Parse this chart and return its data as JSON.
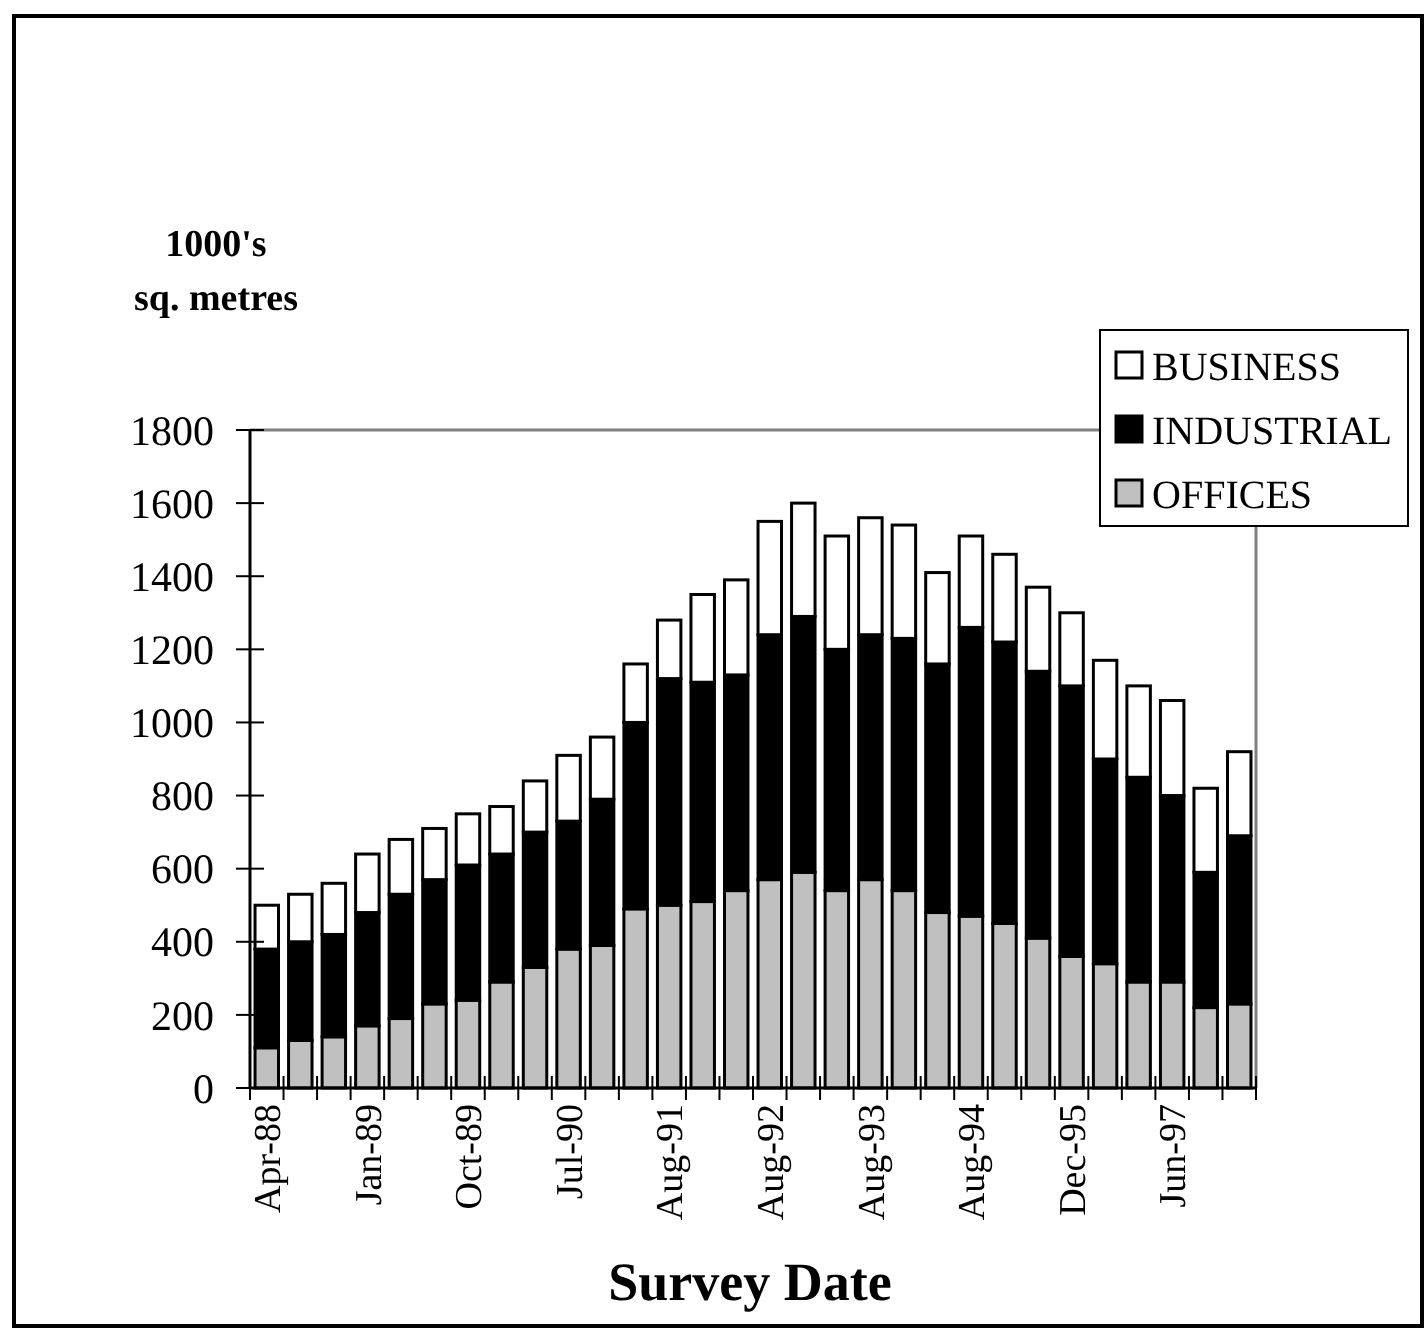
{
  "chart_data": {
    "type": "bar",
    "stacked": true,
    "xlabel": "Survey Date",
    "ylabel": "1000's\nsq. metres",
    "categories": [
      "Apr-88",
      null,
      null,
      "Jan-89",
      null,
      null,
      "Oct-89",
      null,
      null,
      "Jul-90",
      null,
      null,
      "Aug-91",
      null,
      null,
      "Aug-92",
      null,
      null,
      "Aug-93",
      null,
      null,
      "Aug-94",
      null,
      null,
      "Dec-95",
      null,
      null,
      "Jun-97",
      null,
      null
    ],
    "series": [
      {
        "name": "OFFICES",
        "color": "#c0c0c0",
        "values": [
          110,
          130,
          140,
          170,
          190,
          230,
          240,
          290,
          330,
          380,
          390,
          490,
          500,
          510,
          540,
          570,
          590,
          540,
          570,
          540,
          480,
          470,
          450,
          410,
          360,
          340,
          290,
          290,
          220,
          230
        ]
      },
      {
        "name": "INDUSTRIAL",
        "color": "#000000",
        "values": [
          270,
          270,
          280,
          310,
          340,
          340,
          370,
          350,
          370,
          350,
          400,
          510,
          620,
          600,
          590,
          670,
          700,
          660,
          670,
          690,
          680,
          790,
          770,
          730,
          740,
          560,
          560,
          510,
          370,
          460
        ]
      },
      {
        "name": "BUSINESS",
        "color": "#ffffff",
        "values": [
          120,
          130,
          140,
          160,
          150,
          140,
          140,
          130,
          140,
          180,
          170,
          160,
          160,
          240,
          260,
          310,
          310,
          310,
          320,
          310,
          250,
          250,
          240,
          230,
          200,
          270,
          250,
          260,
          230,
          230
        ]
      }
    ],
    "ylim": [
      0,
      1800
    ],
    "yticks": [
      0,
      200,
      400,
      600,
      800,
      1000,
      1200,
      1400,
      1600,
      1800
    ],
    "legend": "top right"
  }
}
